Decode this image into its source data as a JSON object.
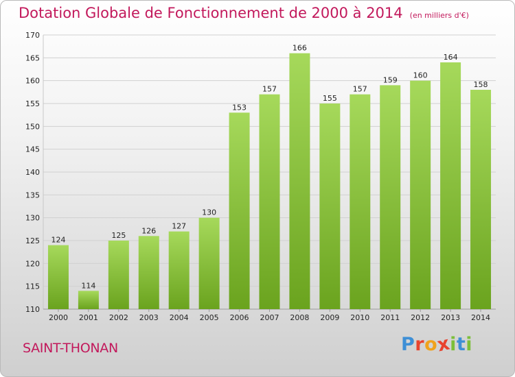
{
  "header": {
    "title": "Dotation Globale de Fonctionnement de 2000 à 2014",
    "unit": "(en milliers d'€)"
  },
  "footer": {
    "commune": "SAINT-THONAN",
    "logo_letters": [
      "P",
      "r",
      "o",
      "x",
      "i",
      "t",
      "i"
    ]
  },
  "colors": {
    "title": "#c2185b",
    "bar_light": "#a6d95b",
    "bar_dark": "#6aa31e",
    "logo": [
      "#3e8fd6",
      "#e8432e",
      "#f0a21c",
      "#e8432e",
      "#7cbf3a",
      "#3e8fd6",
      "#7cbf3a"
    ]
  },
  "chart_data": {
    "type": "bar",
    "title": "Dotation Globale de Fonctionnement de 2000 à 2014",
    "subtitle": "(en milliers d'€)",
    "xlabel": "",
    "ylabel": "",
    "categories": [
      "2000",
      "2001",
      "2002",
      "2003",
      "2004",
      "2005",
      "2006",
      "2007",
      "2008",
      "2009",
      "2010",
      "2011",
      "2012",
      "2013",
      "2014"
    ],
    "values": [
      124,
      114,
      125,
      126,
      127,
      130,
      153,
      157,
      166,
      155,
      157,
      159,
      160,
      164,
      158
    ],
    "ylim": [
      110,
      170
    ],
    "yticks": [
      110,
      115,
      120,
      125,
      130,
      135,
      140,
      145,
      150,
      155,
      160,
      165,
      170
    ],
    "grid": true,
    "legend": "none"
  }
}
